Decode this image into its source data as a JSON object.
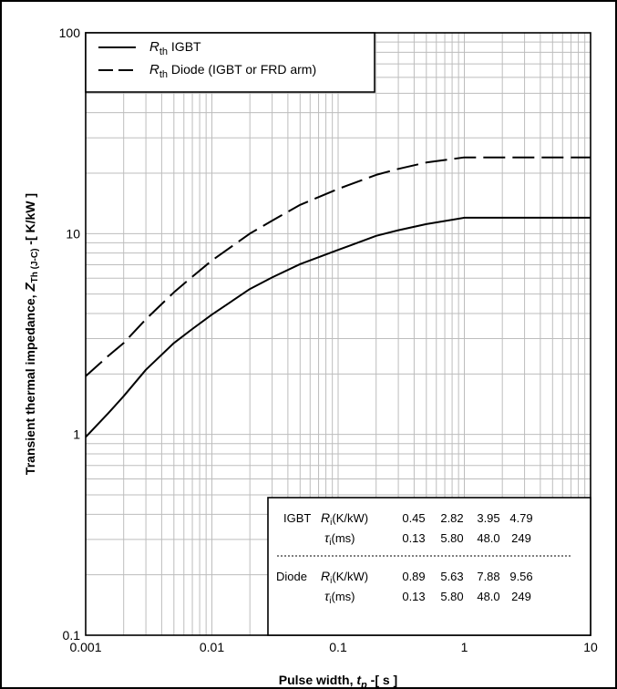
{
  "chart_data": {
    "type": "line",
    "x_scale": "log",
    "y_scale": "log",
    "xlim": [
      0.001,
      10
    ],
    "ylim": [
      0.1,
      100
    ],
    "grid": true,
    "xlabel": {
      "prefix": "Pulse width, ",
      "var": "t",
      "sub": "p",
      "suffix": " -[ s ]"
    },
    "ylabel": {
      "prefix": "Transient thermal  impedance, ",
      "var": "Z",
      "sub": "Th (J-C)",
      "suffix": " -[ K/kW ]"
    },
    "x_ticks": [
      "0.001",
      "0.01",
      "0.1",
      "1",
      "10"
    ],
    "y_ticks": [
      "0.1",
      "1",
      "10",
      "100"
    ],
    "legend_position": "top-left",
    "series": [
      {
        "name_var": "R",
        "name_sub": "th",
        "name": " IGBT",
        "style": "solid",
        "x": [
          0.001,
          0.0015,
          0.002,
          0.003,
          0.005,
          0.007,
          0.01,
          0.02,
          0.03,
          0.05,
          0.1,
          0.2,
          0.3,
          0.5,
          1,
          2,
          5,
          10
        ],
        "y": [
          0.97,
          1.27,
          1.55,
          2.1,
          2.85,
          3.35,
          3.95,
          5.3,
          6.05,
          7.05,
          8.3,
          9.75,
          10.4,
          11.15,
          12.0,
          12.0,
          12.0,
          12.0
        ]
      },
      {
        "name_var": "R",
        "name_sub": "th",
        "name": " Diode (IGBT or FRD arm)",
        "style": "dashed",
        "x": [
          0.001,
          0.0015,
          0.002,
          0.003,
          0.005,
          0.007,
          0.01,
          0.02,
          0.03,
          0.05,
          0.1,
          0.2,
          0.3,
          0.5,
          1,
          2,
          5,
          10
        ],
        "y": [
          1.95,
          2.45,
          2.85,
          3.75,
          5.1,
          6.1,
          7.35,
          10.0,
          11.6,
          13.9,
          16.7,
          19.6,
          21.0,
          22.6,
          23.96,
          23.96,
          23.96,
          23.96
        ]
      }
    ],
    "table": {
      "rows": [
        {
          "label": "IGBT",
          "param_var": "R",
          "param_sub": "i",
          "param_unit": "(K/kW)",
          "values": [
            "0.45",
            "2.82",
            "3.95",
            "4.79"
          ]
        },
        {
          "label": "",
          "param_var": "τ",
          "param_sub": "i",
          "param_unit": "(ms)",
          "values": [
            "0.13",
            "5.80",
            "48.0",
            "249"
          ]
        },
        {
          "label": "Diode",
          "param_var": "R",
          "param_sub": "i",
          "param_unit": "(K/kW)",
          "values": [
            "0.89",
            "5.63",
            "7.88",
            "9.56"
          ]
        },
        {
          "label": "",
          "param_var": "τ",
          "param_sub": "i",
          "param_unit": "(ms)",
          "values": [
            "0.13",
            "5.80",
            "48.0",
            "249"
          ]
        }
      ]
    }
  }
}
